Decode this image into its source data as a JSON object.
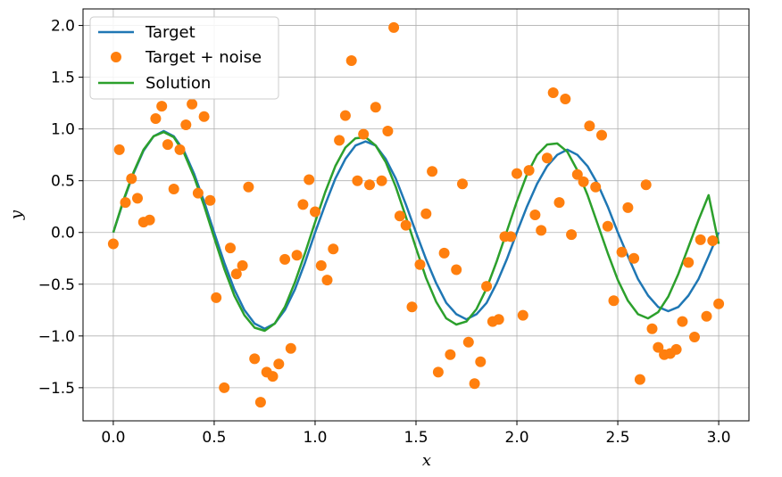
{
  "chart_data": {
    "type": "line",
    "xlabel": "x",
    "ylabel": "y",
    "xlim": [
      -0.15,
      3.15
    ],
    "ylim": [
      -1.82,
      2.16
    ],
    "xticks": [
      "0.0",
      "0.5",
      "1.0",
      "1.5",
      "2.0",
      "2.5",
      "3.0"
    ],
    "yticks": [
      "−1.5",
      "−1.0",
      "−0.5",
      "0.0",
      "0.5",
      "1.0",
      "1.5",
      "2.0"
    ],
    "grid": true,
    "legend_position": "top-left",
    "series": [
      {
        "name": "Target",
        "kind": "line",
        "color": "#1f77b4",
        "x": [
          0.0,
          0.05,
          0.1,
          0.15,
          0.2,
          0.25,
          0.3,
          0.35,
          0.4,
          0.45,
          0.5,
          0.55,
          0.6,
          0.65,
          0.7,
          0.75,
          0.8,
          0.85,
          0.9,
          0.95,
          1.0,
          1.05,
          1.1,
          1.15,
          1.2,
          1.25,
          1.3,
          1.35,
          1.4,
          1.45,
          1.5,
          1.55,
          1.6,
          1.65,
          1.7,
          1.75,
          1.8,
          1.85,
          1.9,
          1.95,
          2.0,
          2.05,
          2.1,
          2.15,
          2.2,
          2.25,
          2.3,
          2.35,
          2.4,
          2.45,
          2.5,
          2.55,
          2.6,
          2.65,
          2.7,
          2.75,
          2.8,
          2.85,
          2.9,
          2.95,
          3.0
        ],
        "y": [
          0.0,
          0.3,
          0.57,
          0.79,
          0.93,
          0.98,
          0.93,
          0.79,
          0.57,
          0.3,
          0.0,
          -0.29,
          -0.55,
          -0.75,
          -0.88,
          -0.93,
          -0.88,
          -0.75,
          -0.55,
          -0.29,
          0.0,
          0.27,
          0.52,
          0.71,
          0.84,
          0.88,
          0.84,
          0.71,
          0.52,
          0.27,
          0.0,
          -0.26,
          -0.49,
          -0.68,
          -0.79,
          -0.84,
          -0.79,
          -0.68,
          -0.49,
          -0.26,
          0.0,
          0.25,
          0.47,
          0.64,
          0.75,
          0.8,
          0.75,
          0.64,
          0.47,
          0.25,
          0.0,
          -0.23,
          -0.45,
          -0.61,
          -0.72,
          -0.76,
          -0.72,
          -0.61,
          -0.45,
          -0.23,
          0.0
        ]
      },
      {
        "name": "Target + noise",
        "kind": "scatter",
        "color": "#ff7f0e",
        "x": [
          0.0,
          0.03,
          0.06,
          0.09,
          0.12,
          0.15,
          0.18,
          0.21,
          0.24,
          0.27,
          0.3,
          0.33,
          0.36,
          0.39,
          0.42,
          0.45,
          0.48,
          0.51,
          0.55,
          0.58,
          0.61,
          0.64,
          0.67,
          0.7,
          0.73,
          0.76,
          0.79,
          0.82,
          0.85,
          0.88,
          0.91,
          0.94,
          0.97,
          1.0,
          1.03,
          1.06,
          1.09,
          1.12,
          1.15,
          1.18,
          1.21,
          1.24,
          1.27,
          1.3,
          1.33,
          1.36,
          1.39,
          1.42,
          1.45,
          1.48,
          1.52,
          1.55,
          1.58,
          1.61,
          1.64,
          1.67,
          1.7,
          1.73,
          1.76,
          1.79,
          1.82,
          1.85,
          1.88,
          1.91,
          1.94,
          1.97,
          2.0,
          2.03,
          2.06,
          2.09,
          2.12,
          2.15,
          2.18,
          2.21,
          2.24,
          2.27,
          2.3,
          2.33,
          2.36,
          2.39,
          2.42,
          2.45,
          2.48,
          2.52,
          2.55,
          2.58,
          2.61,
          2.64,
          2.67,
          2.7,
          2.73,
          2.76,
          2.79,
          2.82,
          2.85,
          2.88,
          2.91,
          2.94,
          2.97,
          3.0
        ],
        "y": [
          -0.11,
          0.8,
          0.29,
          0.52,
          0.33,
          0.1,
          0.12,
          1.1,
          1.22,
          0.85,
          0.42,
          0.8,
          1.04,
          1.24,
          0.38,
          1.12,
          0.31,
          -0.63,
          -1.5,
          -0.15,
          -0.4,
          -0.32,
          0.44,
          -1.22,
          -1.64,
          -1.35,
          -1.39,
          -1.27,
          -0.26,
          -1.12,
          -0.22,
          0.27,
          0.51,
          0.2,
          -0.32,
          -0.46,
          -0.16,
          0.89,
          1.13,
          1.66,
          0.5,
          0.95,
          0.46,
          1.21,
          0.5,
          0.98,
          1.98,
          0.16,
          0.07,
          -0.72,
          -0.31,
          0.18,
          0.59,
          -1.35,
          -0.2,
          -1.18,
          -0.36,
          0.47,
          -1.06,
          -1.46,
          -1.25,
          -0.52,
          -0.86,
          -0.84,
          -0.04,
          -0.04,
          0.57,
          -0.8,
          0.6,
          0.17,
          0.02,
          0.72,
          1.35,
          0.29,
          1.29,
          -0.02,
          0.56,
          0.49,
          1.03,
          0.44,
          0.94,
          0.06,
          -0.66,
          -0.19,
          0.24,
          -0.25,
          -1.42,
          0.46,
          -0.93,
          -1.11,
          -1.18,
          -1.17,
          -1.13,
          -0.86,
          -0.29,
          -1.01,
          -0.07,
          -0.81,
          -0.08,
          -0.69
        ]
      },
      {
        "name": "Solution",
        "kind": "line",
        "color": "#2ca02c",
        "x": [
          0.0,
          0.05,
          0.1,
          0.15,
          0.2,
          0.25,
          0.3,
          0.35,
          0.4,
          0.45,
          0.5,
          0.55,
          0.6,
          0.65,
          0.7,
          0.75,
          0.8,
          0.85,
          0.9,
          0.95,
          1.0,
          1.05,
          1.1,
          1.15,
          1.2,
          1.25,
          1.3,
          1.35,
          1.4,
          1.45,
          1.5,
          1.55,
          1.6,
          1.65,
          1.7,
          1.75,
          1.8,
          1.85,
          1.9,
          1.95,
          2.0,
          2.05,
          2.1,
          2.15,
          2.2,
          2.25,
          2.3,
          2.35,
          2.4,
          2.45,
          2.5,
          2.55,
          2.6,
          2.65,
          2.7,
          2.75,
          2.8,
          2.85,
          2.9,
          2.95,
          3.0
        ],
        "y": [
          0.0,
          0.31,
          0.58,
          0.8,
          0.93,
          0.97,
          0.92,
          0.77,
          0.54,
          0.26,
          -0.05,
          -0.35,
          -0.61,
          -0.8,
          -0.92,
          -0.95,
          -0.88,
          -0.72,
          -0.48,
          -0.2,
          0.1,
          0.39,
          0.64,
          0.82,
          0.91,
          0.92,
          0.84,
          0.68,
          0.44,
          0.15,
          -0.15,
          -0.44,
          -0.67,
          -0.83,
          -0.89,
          -0.86,
          -0.74,
          -0.54,
          -0.28,
          0.01,
          0.3,
          0.56,
          0.75,
          0.85,
          0.86,
          0.78,
          0.6,
          0.36,
          0.08,
          -0.2,
          -0.46,
          -0.66,
          -0.79,
          -0.83,
          -0.77,
          -0.62,
          -0.4,
          -0.14,
          0.12,
          0.36,
          -0.11
        ]
      }
    ]
  }
}
